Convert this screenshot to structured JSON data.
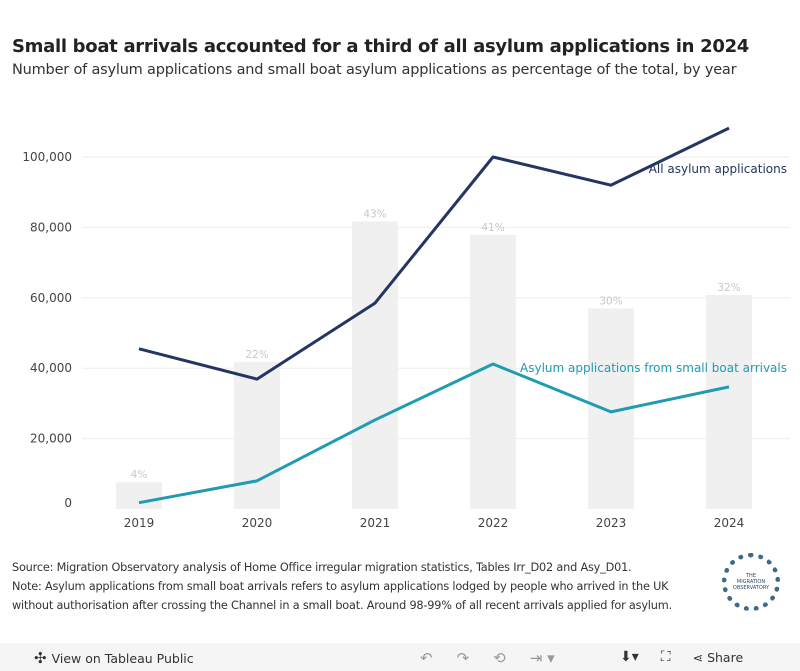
{
  "title": "Small boat arrivals accounted for a third of all asylum applications in 2024",
  "subtitle": "Number of asylum applications and small boat asylum applications as percentage of the total, by year",
  "chart_data": {
    "type": "line",
    "categories": [
      "2019",
      "2020",
      "2021",
      "2022",
      "2023",
      "2024"
    ],
    "series": [
      {
        "name": "All asylum applications",
        "values": [
          45500,
          36900,
          58500,
          100000,
          92000,
          108200
        ],
        "color": "#253561"
      },
      {
        "name": "Asylum applications from small boat arrivals",
        "values": [
          1800,
          8000,
          25300,
          41200,
          27600,
          34700
        ],
        "color": "#1f9bb2"
      }
    ],
    "bars": {
      "values": [
        4,
        22,
        43,
        41,
        30,
        32
      ],
      "labels": [
        "4%",
        "22%",
        "43%",
        "41%",
        "30%",
        "32%"
      ],
      "color": "#f0f0f0"
    },
    "yticks": [
      0,
      20000,
      40000,
      60000,
      80000,
      100000
    ],
    "ytick_labels": [
      "0",
      "20,000",
      "40,000",
      "60,000",
      "80,000",
      "100,000"
    ],
    "ylim": [
      0,
      110000
    ],
    "grid": true
  },
  "notes": {
    "source": "Source: Migration Observatory analysis of Home Office irregular migration statistics, Tables Irr_D02 and Asy_D01.",
    "note1": "Note: Asylum applications from small boat arrivals refers to asylum applications lodged by people who arrived in the UK",
    "note2": "without authorisation after crossing the Channel in a small boat. Around 98-99% of all recent arrivals applied for asylum."
  },
  "logo_text": "THE MIGRATION OBSERVATORY",
  "toolbar": {
    "view": "View on Tableau Public",
    "share": "Share"
  }
}
